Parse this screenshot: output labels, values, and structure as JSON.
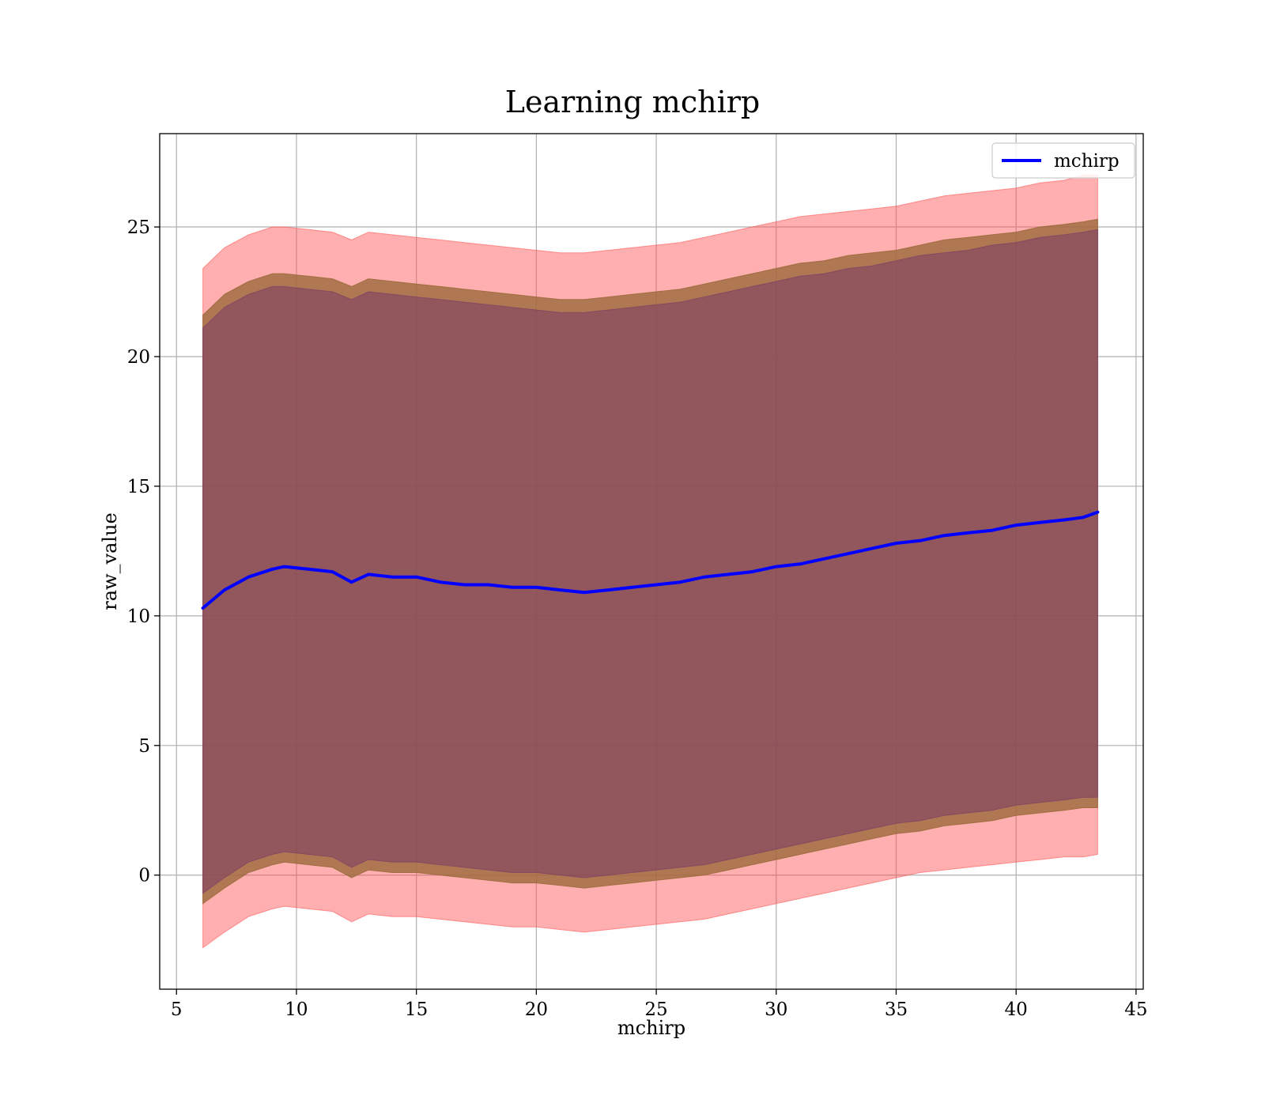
{
  "chart_data": {
    "type": "area",
    "title": "Learning mchirp",
    "xlabel": "mchirp",
    "ylabel": "raw_value",
    "xlim": [
      4.3,
      45.3
    ],
    "ylim": [
      -4.4,
      28.6
    ],
    "xticks": [
      5,
      10,
      15,
      20,
      25,
      30,
      35,
      40,
      45
    ],
    "yticks": [
      0,
      5,
      10,
      15,
      20,
      25
    ],
    "grid": true,
    "legend": {
      "placement": "top-right",
      "entries": [
        "mchirp"
      ]
    },
    "x": [
      6.1,
      7.0,
      8.0,
      9.0,
      9.5,
      10.5,
      11.5,
      12.3,
      13.0,
      14.0,
      15.0,
      16.0,
      17.0,
      18.0,
      19.0,
      20.0,
      21.0,
      22.0,
      23.0,
      24.0,
      25.0,
      26.0,
      27.0,
      28.0,
      29.0,
      30.0,
      31.0,
      32.0,
      33.0,
      34.0,
      35.0,
      36.0,
      37.0,
      38.0,
      39.0,
      40.0,
      41.0,
      42.0,
      42.8,
      43.4
    ],
    "series": [
      {
        "name": "mchirp",
        "color": "#0000ff",
        "values": [
          10.3,
          11.0,
          11.5,
          11.8,
          11.9,
          11.8,
          11.7,
          11.3,
          11.6,
          11.5,
          11.5,
          11.3,
          11.2,
          11.2,
          11.1,
          11.1,
          11.0,
          10.9,
          11.0,
          11.1,
          11.2,
          11.3,
          11.5,
          11.6,
          11.7,
          11.9,
          12.0,
          12.2,
          12.4,
          12.6,
          12.8,
          12.9,
          13.1,
          13.2,
          13.3,
          13.5,
          13.6,
          13.7,
          13.8,
          14.0
        ]
      }
    ],
    "bands": [
      {
        "color": "#ff4d4d",
        "opacity": 0.45,
        "upper": [
          23.4,
          24.2,
          24.7,
          25.0,
          25.0,
          24.9,
          24.8,
          24.5,
          24.8,
          24.7,
          24.6,
          24.5,
          24.4,
          24.3,
          24.2,
          24.1,
          24.0,
          24.0,
          24.1,
          24.2,
          24.3,
          24.4,
          24.6,
          24.8,
          25.0,
          25.2,
          25.4,
          25.5,
          25.6,
          25.7,
          25.8,
          26.0,
          26.2,
          26.3,
          26.4,
          26.5,
          26.7,
          26.8,
          27.0,
          27.0
        ],
        "lower": [
          -2.8,
          -2.2,
          -1.6,
          -1.3,
          -1.2,
          -1.3,
          -1.4,
          -1.8,
          -1.5,
          -1.6,
          -1.6,
          -1.7,
          -1.8,
          -1.9,
          -2.0,
          -2.0,
          -2.1,
          -2.2,
          -2.1,
          -2.0,
          -1.9,
          -1.8,
          -1.7,
          -1.5,
          -1.3,
          -1.1,
          -0.9,
          -0.7,
          -0.5,
          -0.3,
          -0.1,
          0.1,
          0.2,
          0.3,
          0.4,
          0.5,
          0.6,
          0.7,
          0.7,
          0.8
        ]
      },
      {
        "color": "#9b6a3c",
        "opacity": 0.8,
        "upper": [
          21.6,
          22.4,
          22.9,
          23.2,
          23.2,
          23.1,
          23.0,
          22.7,
          23.0,
          22.9,
          22.8,
          22.7,
          22.6,
          22.5,
          22.4,
          22.3,
          22.2,
          22.2,
          22.3,
          22.4,
          22.5,
          22.6,
          22.8,
          23.0,
          23.2,
          23.4,
          23.6,
          23.7,
          23.9,
          24.0,
          24.1,
          24.3,
          24.5,
          24.6,
          24.7,
          24.8,
          25.0,
          25.1,
          25.2,
          25.3
        ],
        "lower": [
          -1.1,
          -0.5,
          0.1,
          0.4,
          0.5,
          0.4,
          0.3,
          -0.1,
          0.2,
          0.1,
          0.1,
          0.0,
          -0.1,
          -0.2,
          -0.3,
          -0.3,
          -0.4,
          -0.5,
          -0.4,
          -0.3,
          -0.2,
          -0.1,
          0.0,
          0.2,
          0.4,
          0.6,
          0.8,
          1.0,
          1.2,
          1.4,
          1.6,
          1.7,
          1.9,
          2.0,
          2.1,
          2.3,
          2.4,
          2.5,
          2.6,
          2.6
        ]
      },
      {
        "color": "#7a3b66",
        "opacity": 0.55,
        "upper": [
          21.1,
          21.9,
          22.4,
          22.7,
          22.7,
          22.6,
          22.5,
          22.2,
          22.5,
          22.4,
          22.3,
          22.2,
          22.1,
          22.0,
          21.9,
          21.8,
          21.7,
          21.7,
          21.8,
          21.9,
          22.0,
          22.1,
          22.3,
          22.5,
          22.7,
          22.9,
          23.1,
          23.2,
          23.4,
          23.5,
          23.7,
          23.9,
          24.0,
          24.1,
          24.3,
          24.4,
          24.6,
          24.7,
          24.8,
          24.9
        ],
        "lower": [
          -0.7,
          -0.1,
          0.5,
          0.8,
          0.9,
          0.8,
          0.7,
          0.3,
          0.6,
          0.5,
          0.5,
          0.4,
          0.3,
          0.2,
          0.1,
          0.1,
          0.0,
          -0.1,
          0.0,
          0.1,
          0.2,
          0.3,
          0.4,
          0.6,
          0.8,
          1.0,
          1.2,
          1.4,
          1.6,
          1.8,
          2.0,
          2.1,
          2.3,
          2.4,
          2.5,
          2.7,
          2.8,
          2.9,
          3.0,
          3.0
        ]
      }
    ]
  }
}
